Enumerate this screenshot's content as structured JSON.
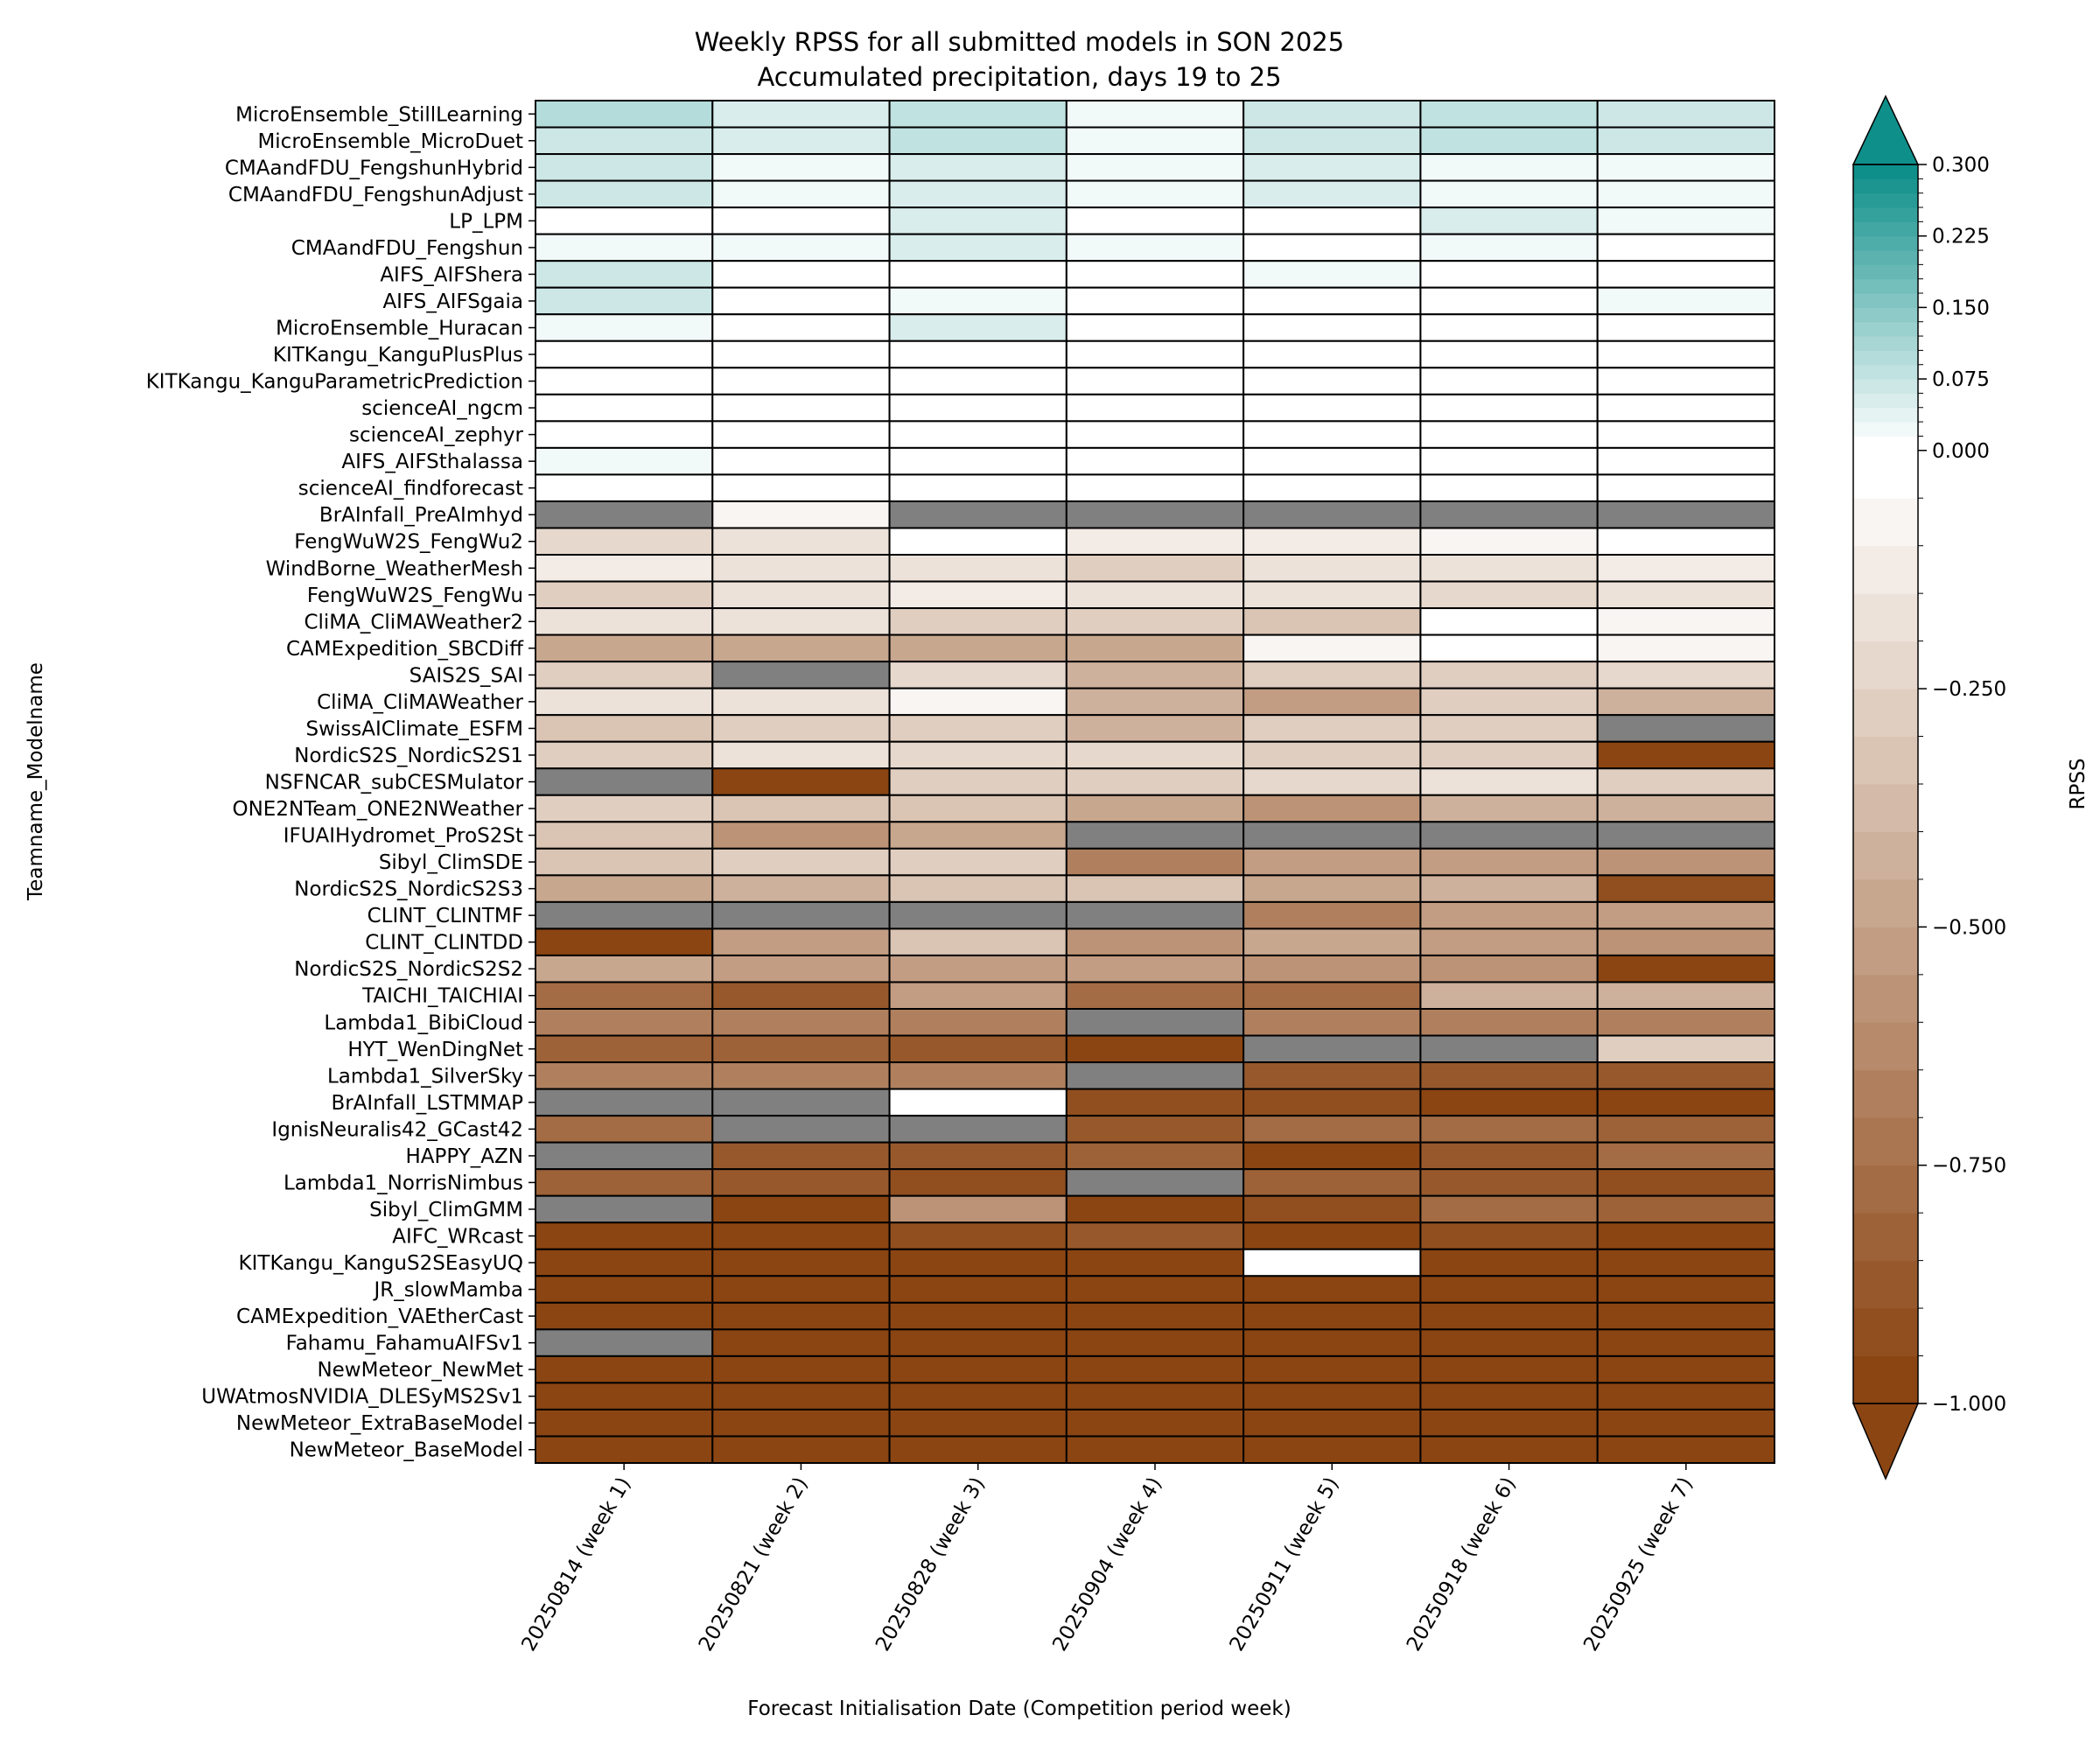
{
  "chart_data": {
    "type": "heatmap",
    "title": "Weekly RPSS for all submitted models in SON 2025",
    "subtitle": "Accumulated precipitation, days 19 to 25",
    "xlabel": "Forecast Initialisation Date (Competition period week)",
    "ylabel": "Teamname_Modelname",
    "colorbar": {
      "label": "RPSS",
      "range": [
        -1.0,
        0.3
      ],
      "extend": "both",
      "tick_labels": [
        "0.300",
        "0.225",
        "0.150",
        "0.075",
        "0.000",
        "−0.250",
        "−0.500",
        "−0.750",
        "−1.000"
      ],
      "tick_values": [
        0.3,
        0.225,
        0.15,
        0.075,
        0.0,
        -0.25,
        -0.5,
        -0.75,
        -1.0
      ],
      "positive_bins": 20,
      "negative_bins": 20,
      "positive_color": "#0f8f8a",
      "negative_color": "#8b4513",
      "missing_color": "#808080"
    },
    "x_categories": [
      "20250814 (week 1)",
      "20250821 (week 2)",
      "20250828 (week 3)",
      "20250904 (week 4)",
      "20250911 (week 5)",
      "20250918 (week 6)",
      "20250925 (week 7)"
    ],
    "y_categories": [
      "MicroEnsemble_StillLearning",
      "MicroEnsemble_MicroDuet",
      "CMAandFDU_FengshunHybrid",
      "CMAandFDU_FengshunAdjust",
      "LP_LPM",
      "CMAandFDU_Fengshun",
      "AIFS_AIFShera",
      "AIFS_AIFSgaia",
      "MicroEnsemble_Huracan",
      "KITKangu_KanguPlusPlus",
      "KITKangu_KanguParametricPrediction",
      "scienceAI_ngcm",
      "scienceAI_zephyr",
      "AIFS_AIFSthalassa",
      "scienceAI_findforecast",
      "BrAInfall_PreAImhyd",
      "FengWuW2S_FengWu2",
      "WindBorne_WeatherMesh",
      "FengWuW2S_FengWu",
      "CliMA_CliMAWeather2",
      "CAMExpedition_SBCDiff",
      "SAIS2S_SAI",
      "CliMA_CliMAWeather",
      "SwissAIClimate_ESFM",
      "NordicS2S_NordicS2S1",
      "NSFNCAR_subCESMulator",
      "ONE2NTeam_ONE2NWeather",
      "IFUAIHydromet_ProS2St",
      "Sibyl_ClimSDE",
      "NordicS2S_NordicS2S3",
      "CLINT_CLINTMF",
      "CLINT_CLINTDD",
      "NordicS2S_NordicS2S2",
      "TAICHI_TAICHIAI",
      "Lambda1_BibiCloud",
      "HYT_WenDingNet",
      "Lambda1_SilverSky",
      "BrAInfall_LSTMMAP",
      "IgnisNeuralis42_GCast42",
      "HAPPY_AZN",
      "Lambda1_NorrisNimbus",
      "Sibyl_ClimGMM",
      "AIFC_WRcast",
      "KITKangu_KanguS2SEasyUQ",
      "JR_slowMamba",
      "CAMExpedition_VAEtherCast",
      "Fahamu_FahamuAIFSv1",
      "NewMeteor_NewMet",
      "UWAtmosNVIDIA_DLESyMS2Sv1",
      "NewMeteor_ExtraBaseModel",
      "NewMeteor_BaseModel"
    ],
    "values": [
      [
        0.09,
        0.045,
        0.075,
        0.02,
        0.06,
        0.075,
        0.06
      ],
      [
        0.06,
        0.045,
        0.075,
        0.02,
        0.06,
        0.075,
        0.06
      ],
      [
        0.06,
        0.02,
        0.045,
        0.02,
        0.045,
        0.02,
        0.02
      ],
      [
        0.06,
        0.02,
        0.045,
        0.02,
        0.045,
        0.02,
        0.02
      ],
      [
        0.005,
        0.005,
        0.045,
        -0.03,
        0.005,
        0.045,
        0.02
      ],
      [
        0.02,
        0.02,
        0.045,
        0.02,
        0.005,
        0.02,
        0.005
      ],
      [
        0.06,
        -0.03,
        -0.03,
        0.005,
        0.02,
        -0.03,
        -0.03
      ],
      [
        0.06,
        -0.03,
        0.02,
        -0.03,
        0.005,
        -0.03,
        0.02
      ],
      [
        0.02,
        -0.03,
        0.045,
        -0.03,
        -0.03,
        0.005,
        0.005
      ],
      [
        0.005,
        0.005,
        0.005,
        0.005,
        0.005,
        0.005,
        0.005
      ],
      [
        0.005,
        0.005,
        0.005,
        0.005,
        0.005,
        0.005,
        0.005
      ],
      [
        0.005,
        0.005,
        0.005,
        0.005,
        0.005,
        0.005,
        0.005
      ],
      [
        0.005,
        0.005,
        0.005,
        0.005,
        0.005,
        0.005,
        0.005
      ],
      [
        0.02,
        -0.03,
        0.005,
        -0.03,
        0.005,
        0.005,
        -0.03
      ],
      [
        0.005,
        0.005,
        0.005,
        0.005,
        -0.03,
        -0.03,
        0.005
      ],
      [
        null,
        -0.08,
        null,
        null,
        null,
        null,
        null
      ],
      [
        -0.2,
        -0.17,
        -0.03,
        -0.12,
        -0.12,
        -0.08,
        -0.03
      ],
      [
        -0.12,
        -0.17,
        -0.17,
        -0.25,
        -0.17,
        -0.17,
        -0.12
      ],
      [
        -0.25,
        -0.17,
        -0.12,
        -0.17,
        -0.17,
        -0.2,
        -0.17
      ],
      [
        -0.17,
        -0.17,
        -0.25,
        -0.3,
        -0.35,
        -0.03,
        -0.08
      ],
      [
        -0.45,
        -0.45,
        -0.45,
        -0.45,
        -0.08,
        -0.03,
        -0.08
      ],
      [
        -0.25,
        null,
        -0.2,
        -0.4,
        -0.3,
        -0.25,
        -0.2
      ],
      [
        -0.17,
        -0.17,
        -0.08,
        -0.4,
        -0.5,
        -0.3,
        -0.4
      ],
      [
        -0.35,
        -0.3,
        -0.25,
        -0.4,
        -0.3,
        -0.25,
        null
      ],
      [
        -0.3,
        -0.17,
        -0.2,
        -0.2,
        -0.25,
        -0.3,
        -1.0
      ],
      [
        null,
        -1.0,
        -0.25,
        -0.25,
        -0.2,
        -0.17,
        -0.25
      ],
      [
        -0.3,
        -0.35,
        -0.35,
        -0.45,
        -0.55,
        -0.4,
        -0.4
      ],
      [
        -0.35,
        -0.55,
        -0.45,
        null,
        null,
        null,
        null
      ],
      [
        -0.35,
        -0.3,
        -0.3,
        -0.7,
        -0.5,
        -0.5,
        -0.55
      ],
      [
        -0.45,
        -0.4,
        -0.35,
        -0.35,
        -0.45,
        -0.4,
        -0.9
      ],
      [
        null,
        null,
        null,
        null,
        -0.7,
        -0.5,
        -0.5
      ],
      [
        -1.0,
        -0.5,
        -0.35,
        -0.55,
        -0.45,
        -0.5,
        -0.6
      ],
      [
        -0.45,
        -0.5,
        -0.5,
        -0.5,
        -0.55,
        -0.6,
        -1.0
      ],
      [
        -0.75,
        -0.85,
        -0.5,
        -0.75,
        -0.75,
        -0.4,
        -0.4
      ],
      [
        -0.65,
        -0.65,
        -0.65,
        null,
        -0.7,
        -0.7,
        -0.7
      ],
      [
        -0.8,
        -0.8,
        -0.85,
        -1.0,
        null,
        null,
        -0.3
      ],
      [
        -0.65,
        -0.65,
        -0.7,
        null,
        -0.85,
        -0.85,
        -0.85
      ],
      [
        null,
        null,
        0.0,
        -0.9,
        -0.9,
        -1.0,
        -1.0
      ],
      [
        -0.75,
        null,
        null,
        -0.85,
        -0.75,
        -0.75,
        -0.8
      ],
      [
        null,
        -0.85,
        -0.85,
        -0.8,
        -1.0,
        -0.85,
        -0.75
      ],
      [
        -0.8,
        -0.85,
        -0.9,
        null,
        -0.8,
        -0.85,
        -0.9
      ],
      [
        null,
        -1.0,
        -0.6,
        -1.0,
        -0.9,
        -0.75,
        -0.8
      ],
      [
        -1.0,
        -1.0,
        -0.9,
        -0.85,
        -1.0,
        -0.9,
        -1.0
      ],
      [
        -1.0,
        -1.0,
        -1.0,
        -1.0,
        0.0,
        -1.0,
        -1.0
      ],
      [
        -1.0,
        -1.0,
        -1.0,
        -1.0,
        -1.0,
        -1.0,
        -1.0
      ],
      [
        -1.0,
        -1.0,
        -1.0,
        -1.0,
        -1.0,
        -1.0,
        -1.0
      ],
      [
        null,
        -1.0,
        -1.0,
        -1.0,
        -1.0,
        -1.0,
        -1.0
      ],
      [
        -1.0,
        -1.0,
        -1.0,
        -1.0,
        -1.0,
        -1.0,
        -1.0
      ],
      [
        -1.0,
        -1.0,
        -1.0,
        -1.0,
        -1.0,
        -1.0,
        -1.0
      ],
      [
        -1.0,
        -1.0,
        -1.0,
        -1.0,
        -1.0,
        -1.0,
        -1.0
      ],
      [
        -1.0,
        -1.0,
        -1.0,
        -1.0,
        -1.0,
        -1.0,
        -1.0
      ]
    ]
  }
}
